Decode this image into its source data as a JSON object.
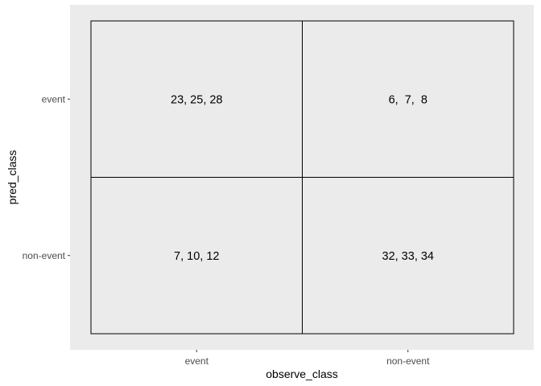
{
  "chart_data": {
    "type": "table",
    "xlabel": "observe_class",
    "ylabel": "pred_class",
    "x_categories": [
      "event",
      "non-event"
    ],
    "y_categories": [
      "event",
      "non-event"
    ],
    "cells": [
      {
        "x": "event",
        "y": "event",
        "label": "23, 25, 28"
      },
      {
        "x": "non-event",
        "y": "event",
        "label": "6,  7,  8"
      },
      {
        "x": "event",
        "y": "non-event",
        "label": "7, 10, 12"
      },
      {
        "x": "non-event",
        "y": "non-event",
        "label": "32, 33, 34"
      }
    ],
    "grid": false,
    "colors": {
      "panel_background": "#ebebeb",
      "cell_fill": "#ebebeb",
      "cell_border": "#000000",
      "tick_text": "#4d4d4d",
      "axis_text": "#000000"
    }
  }
}
